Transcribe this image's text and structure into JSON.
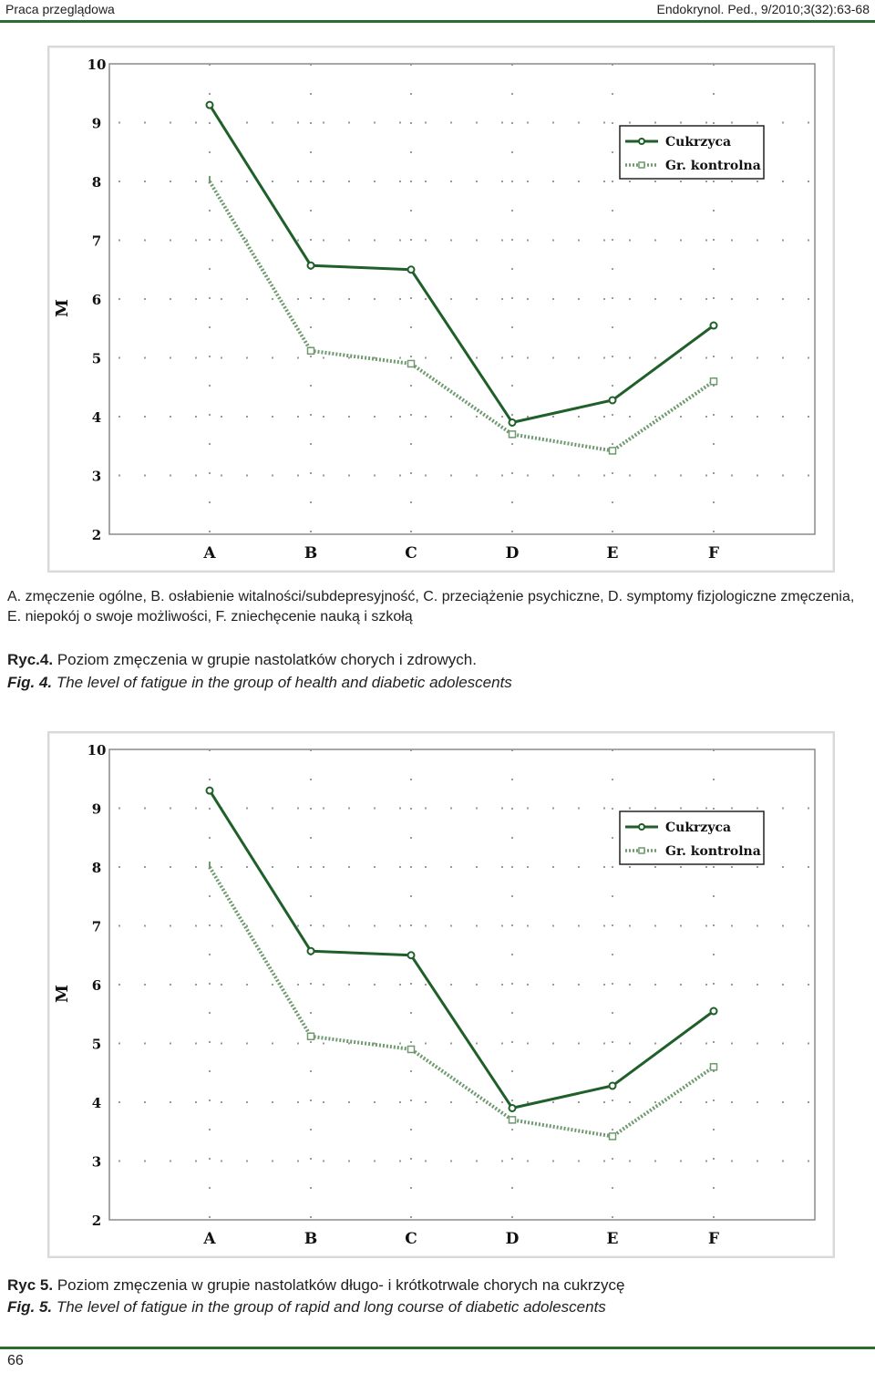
{
  "header": {
    "left": "Praca przeglądowa",
    "right": "Endokrynol. Ped., 9/2010;3(32):63-68"
  },
  "figure4": {
    "caption_note_line1": "A. zmęczenie ogólne, B. osłabienie witalności/subdepresyjność, C. przeciążenie psychiczne, D. symptomy fizjologiczne zmęczenia,",
    "caption_note_line2": "E. niepokój o swoje możliwości, F. zniechęcenie nauką i szkołą",
    "title_pl_lead": "Ryc.4.",
    "title_pl": " Poziom zmęczenia w grupie nastolatków chorych i zdrowych.",
    "title_en_lead": "Fig. 4.",
    "title_en": " The level of fatigue in the group of health and diabetic adolescents"
  },
  "figure5": {
    "title_pl_lead": "Ryc 5.",
    "title_pl": " Poziom zmęczenia w grupie nastolatków długo- i krótkotrwale chorych na cukrzycę",
    "title_en_lead": "Fig. 5.",
    "title_en": " The level of fatigue in the group of rapid and long course of diabetic adolescents"
  },
  "page_number": "66",
  "colors": {
    "accent_rule": "#2e6b2e",
    "series_solid": "#1f5f2a",
    "series_dotted": "#6f9a6f"
  },
  "chart_data": [
    {
      "id": "fig4",
      "type": "line",
      "ylabel": "M",
      "xlabel": "",
      "categories": [
        "A",
        "B",
        "C",
        "D",
        "E",
        "F"
      ],
      "ylim": [
        2,
        10
      ],
      "yticks": [
        "2",
        "3",
        "4",
        "5",
        "6",
        "7",
        "8",
        "9",
        "10"
      ],
      "legend_position": "top-right",
      "series": [
        {
          "name": "Cukrzyca",
          "style": "solid",
          "values": [
            9.3,
            6.57,
            6.5,
            3.9,
            4.28,
            5.55
          ]
        },
        {
          "name": "Gr. kontrolna",
          "style": "dotted",
          "values": [
            8.0,
            5.12,
            4.9,
            3.7,
            3.42,
            4.6
          ]
        }
      ]
    },
    {
      "id": "fig5",
      "type": "line",
      "ylabel": "M",
      "xlabel": "",
      "categories": [
        "A",
        "B",
        "C",
        "D",
        "E",
        "F"
      ],
      "ylim": [
        2,
        10
      ],
      "yticks": [
        "2",
        "3",
        "4",
        "5",
        "6",
        "7",
        "8",
        "9",
        "10"
      ],
      "legend_position": "top-right",
      "series": [
        {
          "name": "Cukrzyca",
          "style": "solid",
          "values": [
            9.3,
            6.57,
            6.5,
            3.9,
            4.28,
            5.55
          ]
        },
        {
          "name": "Gr. kontrolna",
          "style": "dotted",
          "values": [
            8.0,
            5.12,
            4.9,
            3.7,
            3.42,
            4.6
          ]
        }
      ]
    }
  ]
}
